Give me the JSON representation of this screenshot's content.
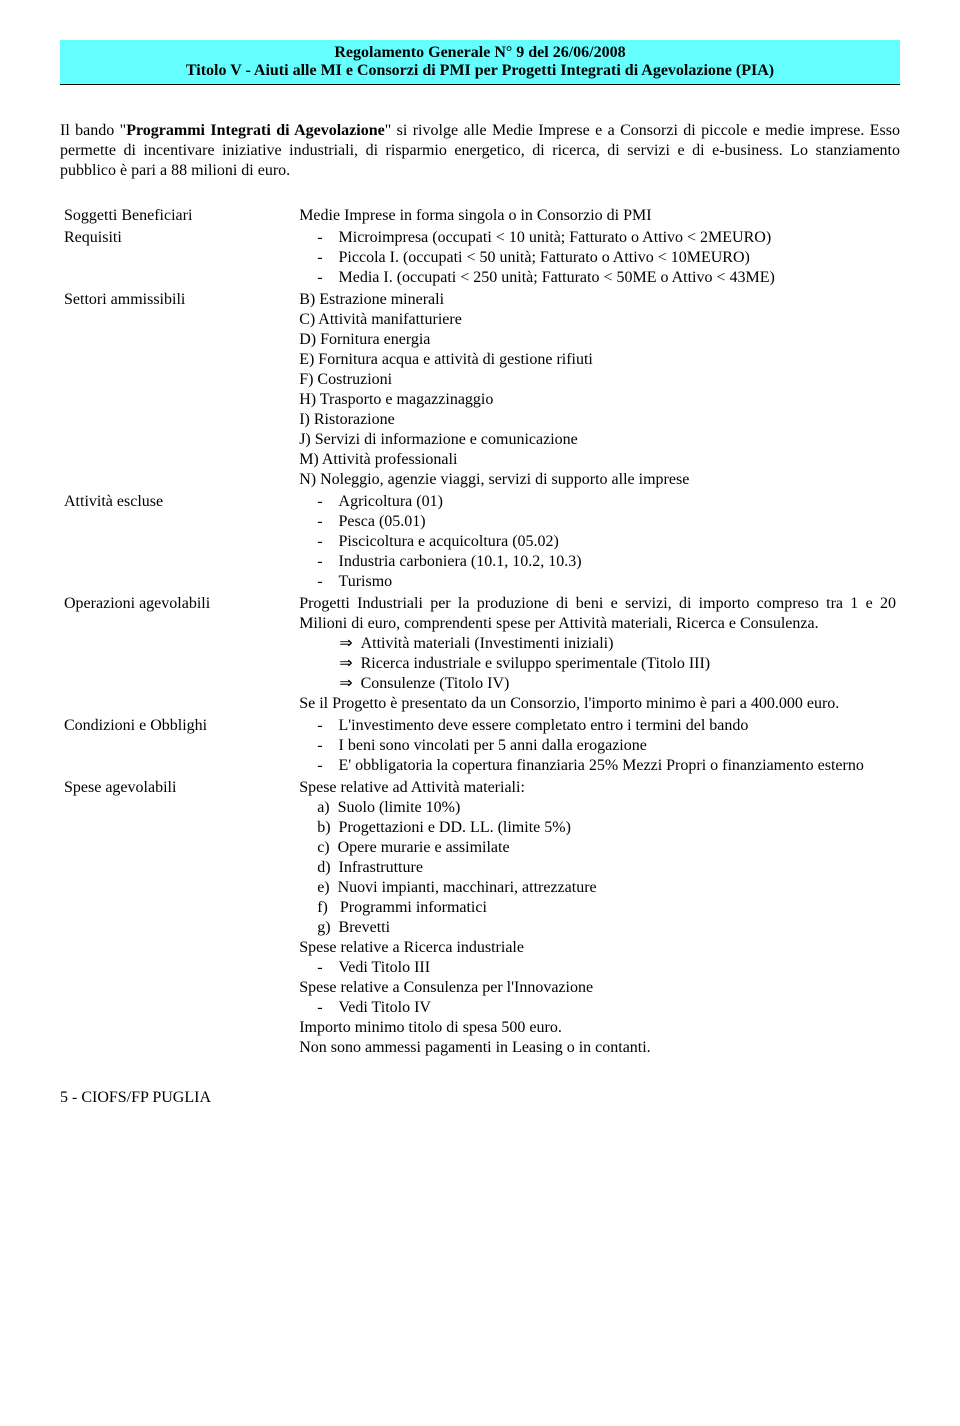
{
  "header": {
    "line1": "Regolamento Generale N° 9 del 26/06/2008",
    "line2": "Titolo V - Aiuti alle MI e Consorzi di PMI per Progetti Integrati di Agevolazione (PIA)"
  },
  "intro": {
    "pre": "Il bando \"",
    "bold": "Programmi Integrati di Agevolazione",
    "post": "\" si rivolge alle Medie Imprese e a Consorzi di piccole e medie imprese. Esso permette di incentivare iniziative industriali, di risparmio energetico, di ricerca, di servizi e di e-business. Lo stanziamento pubblico è pari a 88 milioni di euro."
  },
  "rows": {
    "soggetti": {
      "label": "Soggetti Beneficiari",
      "value": "Medie Imprese in forma singola o in Consorzio di PMI"
    },
    "requisiti": {
      "label": "Requisiti",
      "items": [
        "Microimpresa (occupati < 10 unità; Fatturato o Attivo < 2MEURO)",
        "Piccola I. (occupati < 50 unità; Fatturato o Attivo < 10MEURO)",
        "Media I. (occupati < 250 unità; Fatturato < 50ME o Attivo < 43ME)"
      ]
    },
    "settori": {
      "label": "Settori ammissibili",
      "items": [
        "B) Estrazione minerali",
        "C) Attività manifatturiere",
        "D) Fornitura energia",
        "E) Fornitura acqua e attività di gestione rifiuti",
        "F) Costruzioni",
        "H) Trasporto e magazzinaggio",
        "I) Ristorazione",
        "J) Servizi di informazione e comunicazione",
        "M) Attività professionali",
        "N) Noleggio, agenzie viaggi, servizi di supporto alle imprese"
      ]
    },
    "escluse": {
      "label": "Attività escluse",
      "items": [
        "Agricoltura (01)",
        "Pesca (05.01)",
        "Piscicoltura e acquicoltura (05.02)",
        "Industria carboniera (10.1, 10.2, 10.3)",
        "Turismo"
      ]
    },
    "operazioni": {
      "label": "Operazioni agevolabili",
      "para1": "Progetti Industriali per la produzione di beni e servizi, di importo compreso tra 1 e 20 Milioni di euro, comprendenti spese per Attività materiali, Ricerca e Consulenza.",
      "arrows": [
        "Attività materiali (Investimenti iniziali)",
        "Ricerca industriale e sviluppo sperimentale (Titolo III)",
        "Consulenze (Titolo IV)"
      ],
      "para2": "Se il Progetto è presentato da un Consorzio, l'importo minimo è pari a 400.000 euro."
    },
    "condizioni": {
      "label": "Condizioni e Obblighi",
      "items": [
        "L'investimento deve essere completato entro i termini del bando",
        "I beni sono vincolati per 5 anni dalla erogazione",
        "E' obbligatoria la copertura finanziaria 25% Mezzi Propri o finanziamento esterno"
      ]
    },
    "spese": {
      "label": "Spese agevolabili",
      "head1": "Spese relative ad Attività materiali:",
      "letters": [
        "Suolo (limite 10%)",
        "Progettazioni e DD. LL. (limite 5%)",
        "Opere murarie e assimilate",
        "Infrastrutture",
        "Nuovi impianti, macchinari, attrezzature",
        "Programmi informatici",
        "Brevetti"
      ],
      "head2": "Spese relative a Ricerca industriale",
      "dash2": "Vedi Titolo III",
      "head3": "Spese relative a Consulenza per l'Innovazione",
      "dash3": "Vedi Titolo IV",
      "tail1": "Importo minimo titolo di spesa 500 euro.",
      "tail2": "Non sono ammessi pagamenti in Leasing o in contanti."
    }
  },
  "footer": "5 -  CIOFS/FP PUGLIA",
  "colors": {
    "header_bg": "#66ffff",
    "text": "#000000",
    "page_bg": "#ffffff"
  }
}
